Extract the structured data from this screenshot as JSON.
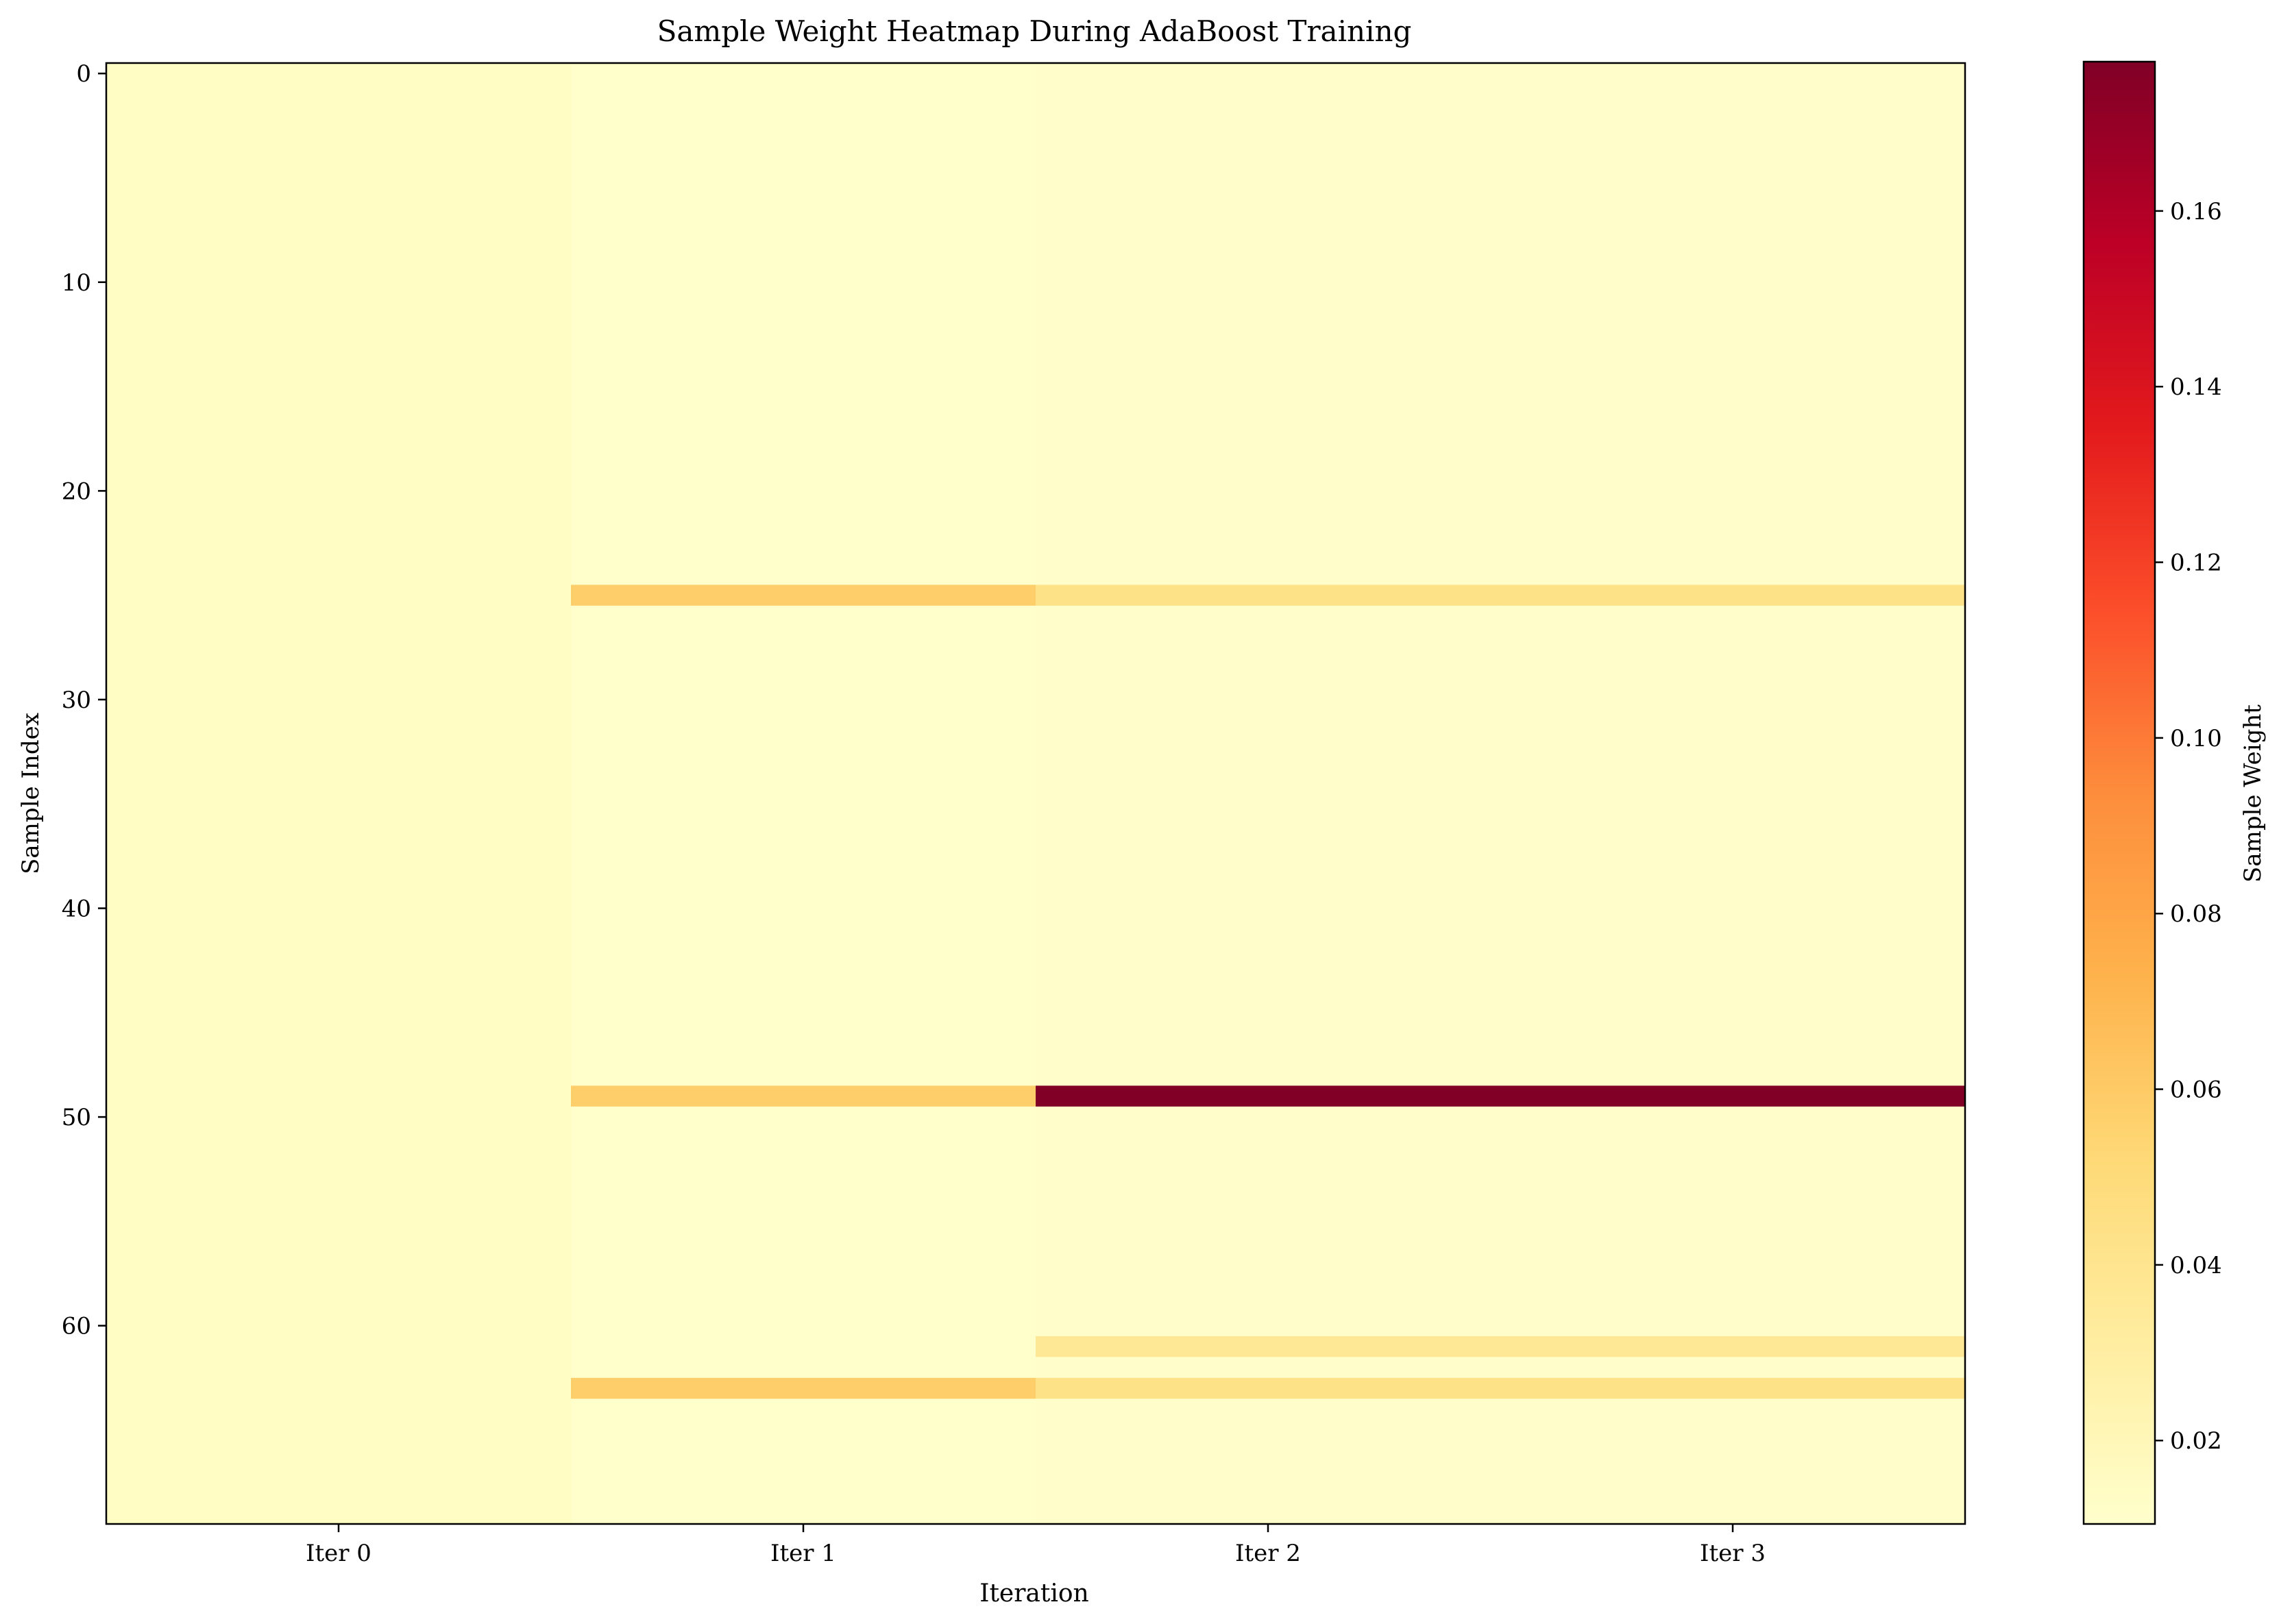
{
  "chart_data": {
    "type": "heatmap",
    "title": "Sample Weight Heatmap During AdaBoost Training",
    "xlabel": "Iteration",
    "ylabel": "Sample Index",
    "colorbar_label": "Sample Weight",
    "colormap": "YlOrRd",
    "grid": false,
    "legend": "none",
    "x_categories": [
      "Iter 0",
      "Iter 1",
      "Iter 2",
      "Iter 3"
    ],
    "n_samples": 70,
    "y_ticks": [
      0,
      10,
      20,
      30,
      40,
      50,
      60
    ],
    "color_range": [
      0.0105,
      0.177
    ],
    "colorbar_ticks": [
      0.02,
      0.04,
      0.06,
      0.08,
      0.1,
      0.12,
      0.14,
      0.16
    ],
    "colorbar_tick_labels": [
      "0.02",
      "0.04",
      "0.06",
      "0.08",
      "0.10",
      "0.12",
      "0.14",
      "0.16"
    ],
    "base_weights": [
      0.0143,
      0.0107,
      0.0112,
      0.0112
    ],
    "highlighted_rows": [
      {
        "sample": 25,
        "weights": [
          0.0143,
          0.058,
          0.043,
          0.043
        ]
      },
      {
        "sample": 49,
        "weights": [
          0.0143,
          0.058,
          0.177,
          0.177
        ]
      },
      {
        "sample": 61,
        "weights": [
          0.0143,
          0.0107,
          0.037,
          0.037
        ]
      },
      {
        "sample": 63,
        "weights": [
          0.0143,
          0.058,
          0.043,
          0.043
        ]
      }
    ]
  }
}
